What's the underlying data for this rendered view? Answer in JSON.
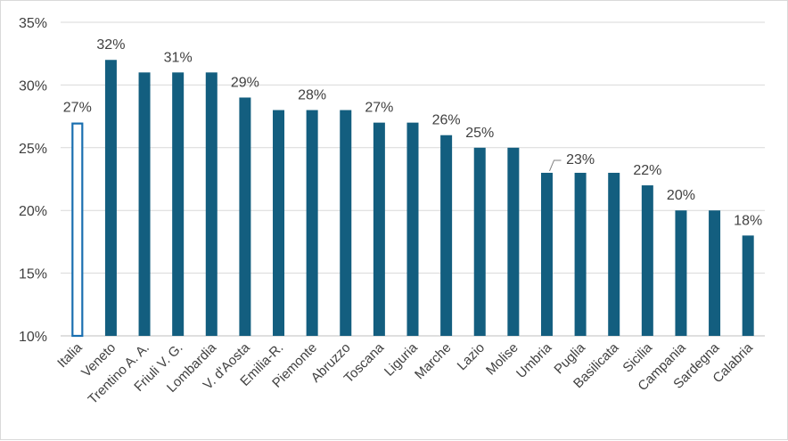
{
  "chart_data": {
    "type": "bar",
    "categories": [
      "Italia",
      "Veneto",
      "Trentino A. A.",
      "Friuli V. G.",
      "Lombardia",
      "V. d'Aosta",
      "Emilia-R.",
      "Piemonte",
      "Abruzzo",
      "Toscana",
      "Liguria",
      "Marche",
      "Lazio",
      "Molise",
      "Umbria",
      "Puglia",
      "Basilicata",
      "Sicilia",
      "Campania",
      "Sardegna",
      "Calabria"
    ],
    "values": [
      27,
      32,
      31,
      31,
      31,
      29,
      28,
      28,
      28,
      27,
      27,
      26,
      25,
      25,
      23,
      23,
      23,
      22,
      20,
      20,
      18
    ],
    "value_labels": [
      "27%",
      "32%",
      "",
      "31%",
      "",
      "29%",
      "",
      "28%",
      "",
      "27%",
      "",
      "26%",
      "25%",
      "",
      "",
      "23%",
      "",
      "22%",
      "20%",
      "",
      "18%"
    ],
    "highlight_index": 0,
    "ylim": [
      10,
      35
    ],
    "yticks": [
      "10%",
      "15%",
      "20%",
      "25%",
      "30%",
      "35%"
    ],
    "ytick_values": [
      10,
      15,
      20,
      25,
      30,
      35
    ],
    "grid": true,
    "title": "",
    "xlabel": "",
    "ylabel": "",
    "colors": {
      "bar": "#135e7f",
      "highlight_outline": "#1a6fb0",
      "grid": "#d9d9d9",
      "axis": "#bfbfbf"
    }
  }
}
